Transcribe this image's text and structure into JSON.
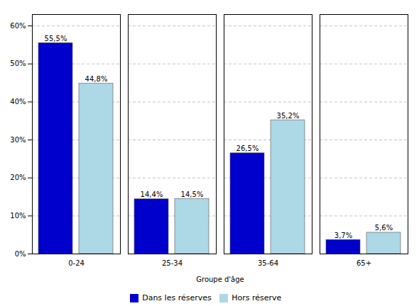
{
  "chart_data": {
    "type": "bar",
    "xlabel": "Groupe d'âge",
    "categories": [
      "0-24",
      "25-34",
      "35-64",
      "65+"
    ],
    "series": [
      {
        "name": "Dans les réserves",
        "color": "#0000CC",
        "values": [
          55.5,
          14.4,
          26.5,
          3.7
        ],
        "value_labels": [
          "55,5%",
          "14,4%",
          "26,5%",
          "3,7%"
        ]
      },
      {
        "name": "Hors réserve",
        "color": "#ADD8E6",
        "values": [
          44.8,
          14.5,
          35.2,
          5.6
        ],
        "value_labels": [
          "44,8%",
          "14,5%",
          "35,2%",
          "5,6%"
        ]
      }
    ],
    "ylim": [
      0,
      63
    ],
    "yticks": [
      {
        "value": 0,
        "label": "0%"
      },
      {
        "value": 10,
        "label": "10%"
      },
      {
        "value": 20,
        "label": "20%"
      },
      {
        "value": 30,
        "label": "30%"
      },
      {
        "value": 40,
        "label": "40%"
      },
      {
        "value": 50,
        "label": "50%"
      },
      {
        "value": 60,
        "label": "60%"
      }
    ],
    "grid": true,
    "legend": "lower center",
    "data_labels": true
  }
}
